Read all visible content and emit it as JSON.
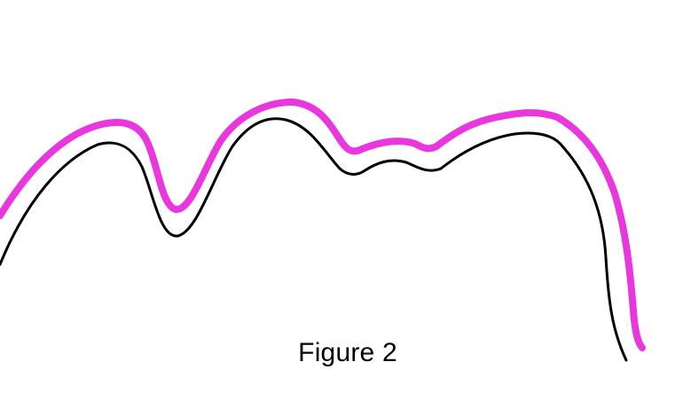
{
  "caption": "Figure 2",
  "colors": {
    "background": "#ffffff",
    "outer_line": "#e838dd",
    "inner_line": "#000000",
    "caption_text": "#000000"
  }
}
